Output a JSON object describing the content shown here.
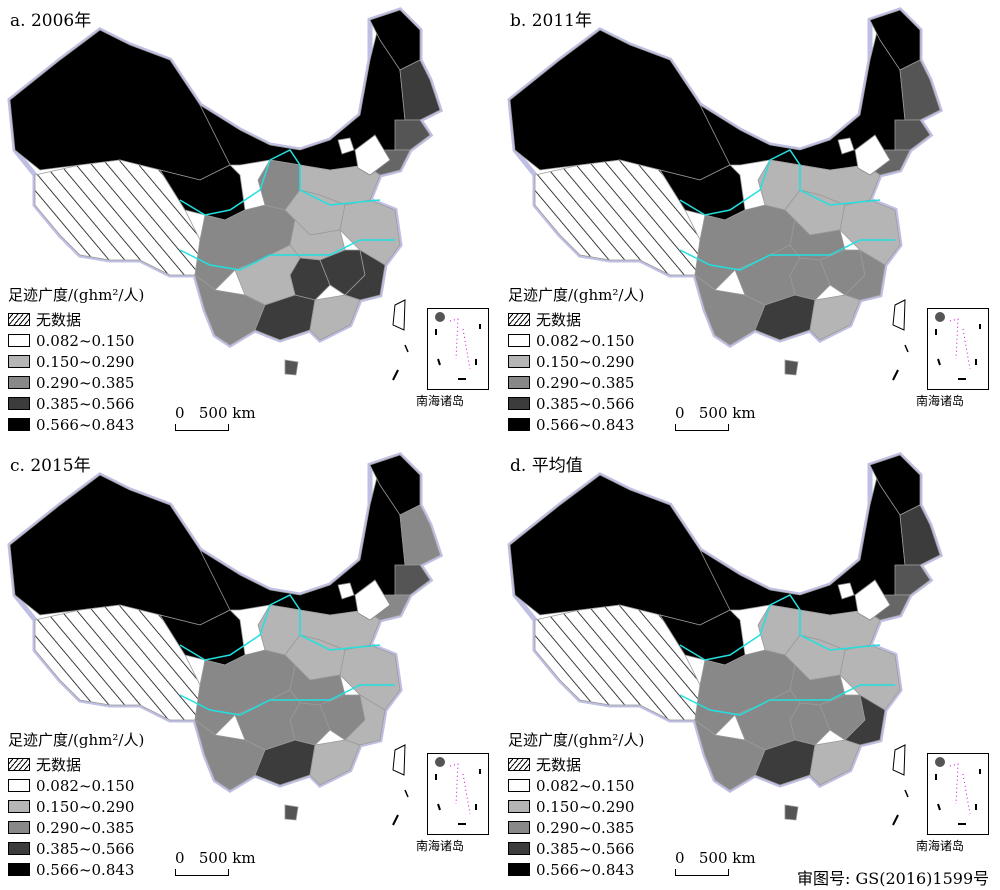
{
  "panels": [
    {
      "title": "a. 2006年",
      "colors": {
        "west": "#000",
        "northeast": "#000",
        "heilongjiang": "#3c3c3c",
        "jilin": "#555",
        "liaoning": "#666",
        "neimeng": "#000",
        "qinghai": "#000",
        "tibet": "hatch",
        "sichuan": "#888",
        "yunnan": "#888",
        "guangxi": "#3c3c3c",
        "guangdong": "#b5b5b5",
        "fujian": "#3c3c3c",
        "hunan": "#3c3c3c",
        "hubei": "#b5b5b5",
        "jiangxi": "#3c3c3c",
        "north_china": "#b5b5b5",
        "shanxi": "#888",
        "henan": "#b5b5b5",
        "guizhou": "#b5b5b5",
        "east": "#b5b5b5",
        "hainan": "#555"
      }
    },
    {
      "title": "b. 2011年",
      "colors": {
        "west": "#000",
        "northeast": "#000",
        "heilongjiang": "#555",
        "jilin": "#555",
        "liaoning": "#666",
        "neimeng": "#000",
        "qinghai": "#000",
        "tibet": "hatch",
        "sichuan": "#888",
        "yunnan": "#888",
        "guangxi": "#3c3c3c",
        "guangdong": "#b5b5b5",
        "fujian": "#888",
        "hunan": "#888",
        "hubei": "#888",
        "jiangxi": "#888",
        "north_china": "#b5b5b5",
        "shanxi": "#b5b5b5",
        "henan": "#b5b5b5",
        "guizhou": "#888",
        "east": "#b5b5b5",
        "hainan": "#555"
      }
    },
    {
      "title": "c. 2015年",
      "colors": {
        "west": "#000",
        "northeast": "#000",
        "heilongjiang": "#888",
        "jilin": "#555",
        "liaoning": "#888",
        "neimeng": "#000",
        "qinghai": "#000",
        "tibet": "hatch",
        "sichuan": "#888",
        "yunnan": "#888",
        "guangxi": "#3c3c3c",
        "guangdong": "#b5b5b5",
        "fujian": "#b5b5b5",
        "hunan": "#888",
        "hubei": "#888",
        "jiangxi": "#888",
        "north_china": "#b5b5b5",
        "shanxi": "#b5b5b5",
        "henan": "#b5b5b5",
        "guizhou": "#888",
        "east": "#b5b5b5",
        "hainan": "#555"
      }
    },
    {
      "title": "d. 平均值",
      "colors": {
        "west": "#000",
        "northeast": "#000",
        "heilongjiang": "#3c3c3c",
        "jilin": "#555",
        "liaoning": "#666",
        "neimeng": "#000",
        "qinghai": "#000",
        "tibet": "hatch",
        "sichuan": "#888",
        "yunnan": "#888",
        "guangxi": "#3c3c3c",
        "guangdong": "#b5b5b5",
        "fujian": "#3c3c3c",
        "hunan": "#888",
        "hubei": "#888",
        "jiangxi": "#888",
        "north_china": "#b5b5b5",
        "shanxi": "#b5b5b5",
        "henan": "#b5b5b5",
        "guizhou": "#888",
        "east": "#b5b5b5",
        "hainan": "#555"
      }
    }
  ],
  "legend": {
    "title": "足迹广度/(ghm²/人)",
    "classes": [
      {
        "label": "无数据",
        "fill": "hatch"
      },
      {
        "label": "0.082~0.150",
        "fill": "#ffffff"
      },
      {
        "label": "0.150~0.290",
        "fill": "#b5b5b5"
      },
      {
        "label": "0.290~0.385",
        "fill": "#888888"
      },
      {
        "label": "0.385~0.566",
        "fill": "#3c3c3c"
      },
      {
        "label": "0.566~0.843",
        "fill": "#000000"
      }
    ]
  },
  "scale_bar": {
    "zero": "0",
    "label": "500 km"
  },
  "inset_caption": "南海诸岛",
  "review_number": "审图号: GS(2016)1599号",
  "colors": {
    "border": "#7070c0",
    "river": "#22e0e0",
    "province_line": "#9a9a9a"
  }
}
